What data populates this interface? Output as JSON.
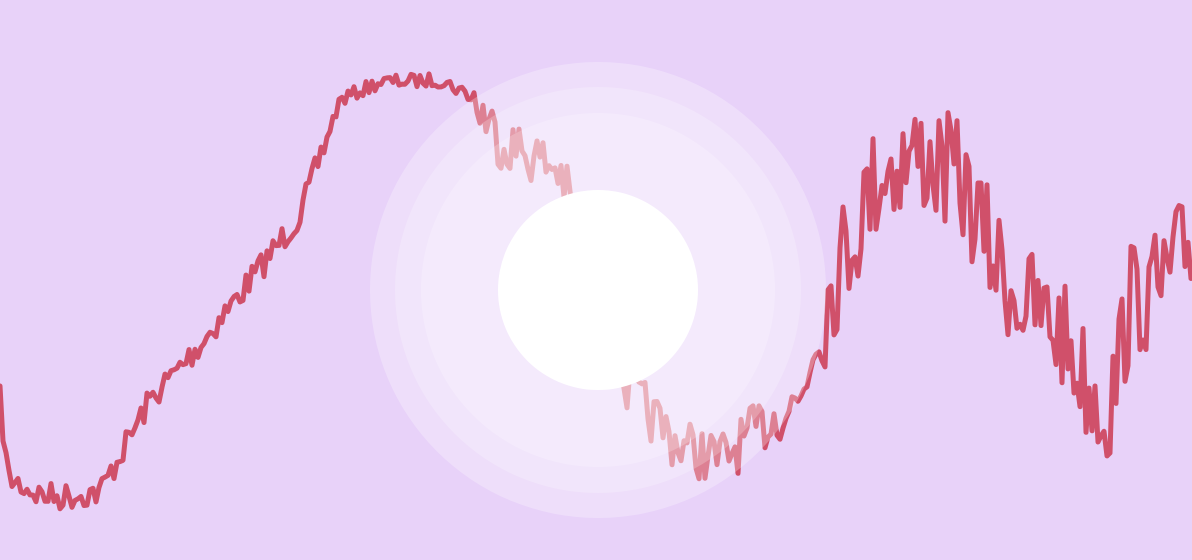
{
  "scene": {
    "background_color": "#e8d2f9",
    "line_color": "#d0506a",
    "glow_color": "#ffffff",
    "core_color": "#ffffff",
    "elements": [
      "background",
      "noisy-waveform-line",
      "radial-glow",
      "white-disc"
    ]
  }
}
